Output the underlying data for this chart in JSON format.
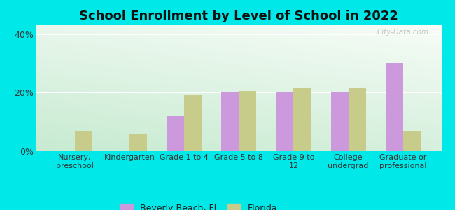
{
  "title": "School Enrollment by Level of School in 2022",
  "categories": [
    "Nursery,\npreschool",
    "Kindergarten",
    "Grade 1 to 4",
    "Grade 5 to 8",
    "Grade 9 to\n12",
    "College\nundergrad",
    "Graduate or\nprofessional"
  ],
  "beverly_beach": [
    0,
    0,
    12,
    20,
    20,
    20,
    30
  ],
  "florida": [
    7,
    6,
    19,
    20.5,
    21.5,
    21.5,
    7
  ],
  "beverly_color": "#cc99dd",
  "florida_color": "#c8cc8a",
  "background_outer": "#00e8e8",
  "title_fontsize": 13,
  "ylim": [
    0,
    43
  ],
  "yticks": [
    0,
    20,
    40
  ],
  "ytick_labels": [
    "0%",
    "20%",
    "40%"
  ],
  "watermark": "City-Data.com",
  "legend_label1": "Beverly Beach, FL",
  "legend_label2": "Florida",
  "bar_width": 0.32,
  "grid_color": "#dddddd"
}
